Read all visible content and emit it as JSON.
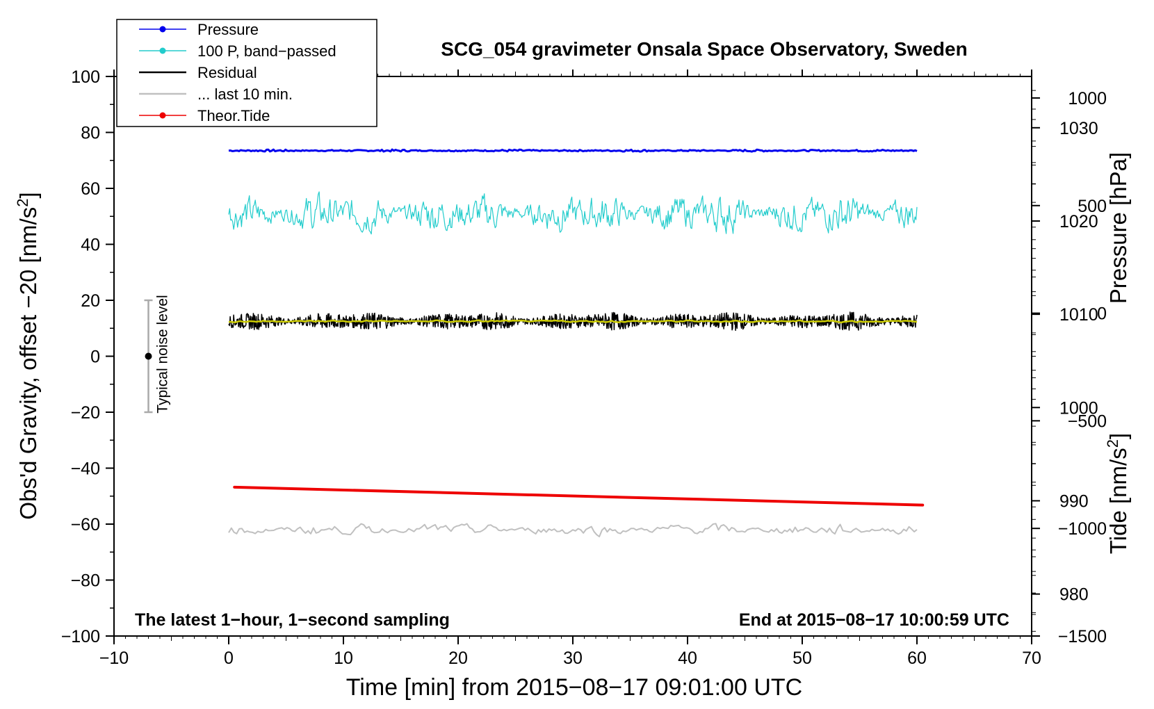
{
  "chart_data": {
    "type": "line",
    "title": "SCG_054 gravimeter Onsala Space Observatory, Sweden",
    "xlabel": "Time [min] from 2015−08−17 09:01:00 UTC",
    "ylabel_left": "Obs'd Gravity, offset −20 [nm/s²]",
    "ylabel_left_base": "Obs'd Gravity, offset −20 [nm/s",
    "ylabel_right_top": "Pressure [hPa]",
    "ylabel_right_bottom_base": "Tide [nm/s",
    "xlim": [
      -10,
      70
    ],
    "ylim": [
      -100,
      100
    ],
    "x_ticks": [
      -10,
      0,
      10,
      20,
      30,
      40,
      50,
      60,
      70
    ],
    "x_tick_labels": [
      "−10",
      "0",
      "10",
      "20",
      "30",
      "40",
      "50",
      "60",
      "70"
    ],
    "y_ticks": [
      -100,
      -80,
      -60,
      -40,
      -20,
      0,
      20,
      40,
      60,
      80,
      100
    ],
    "y_tick_labels": [
      "−100",
      "−80",
      "−60",
      "−40",
      "−20",
      "0",
      "20",
      "40",
      "60",
      "80",
      "100"
    ],
    "pressure_axis": {
      "ticks": [
        980,
        990,
        1000,
        1010,
        1020,
        1030
      ],
      "tick_labels": [
        "980",
        "990",
        "1000",
        "1010",
        "1020",
        "1030"
      ],
      "range": [
        975.5,
        1035.5
      ]
    },
    "tide_axis": {
      "ticks": [
        -1500,
        -1000,
        -500,
        0,
        500,
        1000
      ],
      "tick_labels": [
        "−1500",
        "−1000",
        "−500",
        "0",
        "500",
        "1000"
      ],
      "range": [
        -1500,
        1100
      ]
    },
    "legend_position": "top-left",
    "legend": [
      {
        "label": "Pressure",
        "color": "#0000ee",
        "marker": true
      },
      {
        "label": "100 P, band−passed",
        "color": "#22cccc",
        "marker": true
      },
      {
        "label": "Residual",
        "color": "#000000",
        "marker": false
      },
      {
        "label": "... last 10 min.",
        "color": "#c0c0c0",
        "marker": false
      },
      {
        "label": "Theor.Tide",
        "color": "#ee0000",
        "marker": true
      }
    ],
    "series": [
      {
        "name": "Pressure",
        "color": "#0000ee",
        "x_range": [
          0,
          60
        ],
        "mean": 73.5,
        "amplitude": 0.4
      },
      {
        "name": "100 P, band-passed",
        "color": "#22cccc",
        "x_range": [
          0,
          60
        ],
        "mean": 51,
        "amplitude": 13
      },
      {
        "name": "Residual",
        "color": "#000000",
        "x_range": [
          0,
          60
        ],
        "mean": 12.5,
        "amplitude": 3.5
      },
      {
        "name": "Residual smoothed",
        "color": "#cccc00",
        "x_range": [
          0,
          60
        ],
        "mean": 12.5,
        "amplitude": 0.8
      },
      {
        "name": "... last 10 min.",
        "color": "#c0c0c0",
        "x_range": [
          0,
          60
        ],
        "mean": -62,
        "amplitude": 4
      },
      {
        "name": "Theor.Tide",
        "color": "#ee0000",
        "x": [
          0.5,
          60.5
        ],
        "y": [
          -46.8,
          -53.2
        ]
      }
    ],
    "noise_bar": {
      "x": -7,
      "y": 0,
      "y_low": -20,
      "y_high": 20,
      "label": "Typical noise level"
    },
    "annotations": {
      "bottom_left": "The latest 1−hour, 1−second sampling",
      "bottom_right": "End at 2015−08−17 10:00:59 UTC"
    },
    "grid": false
  }
}
